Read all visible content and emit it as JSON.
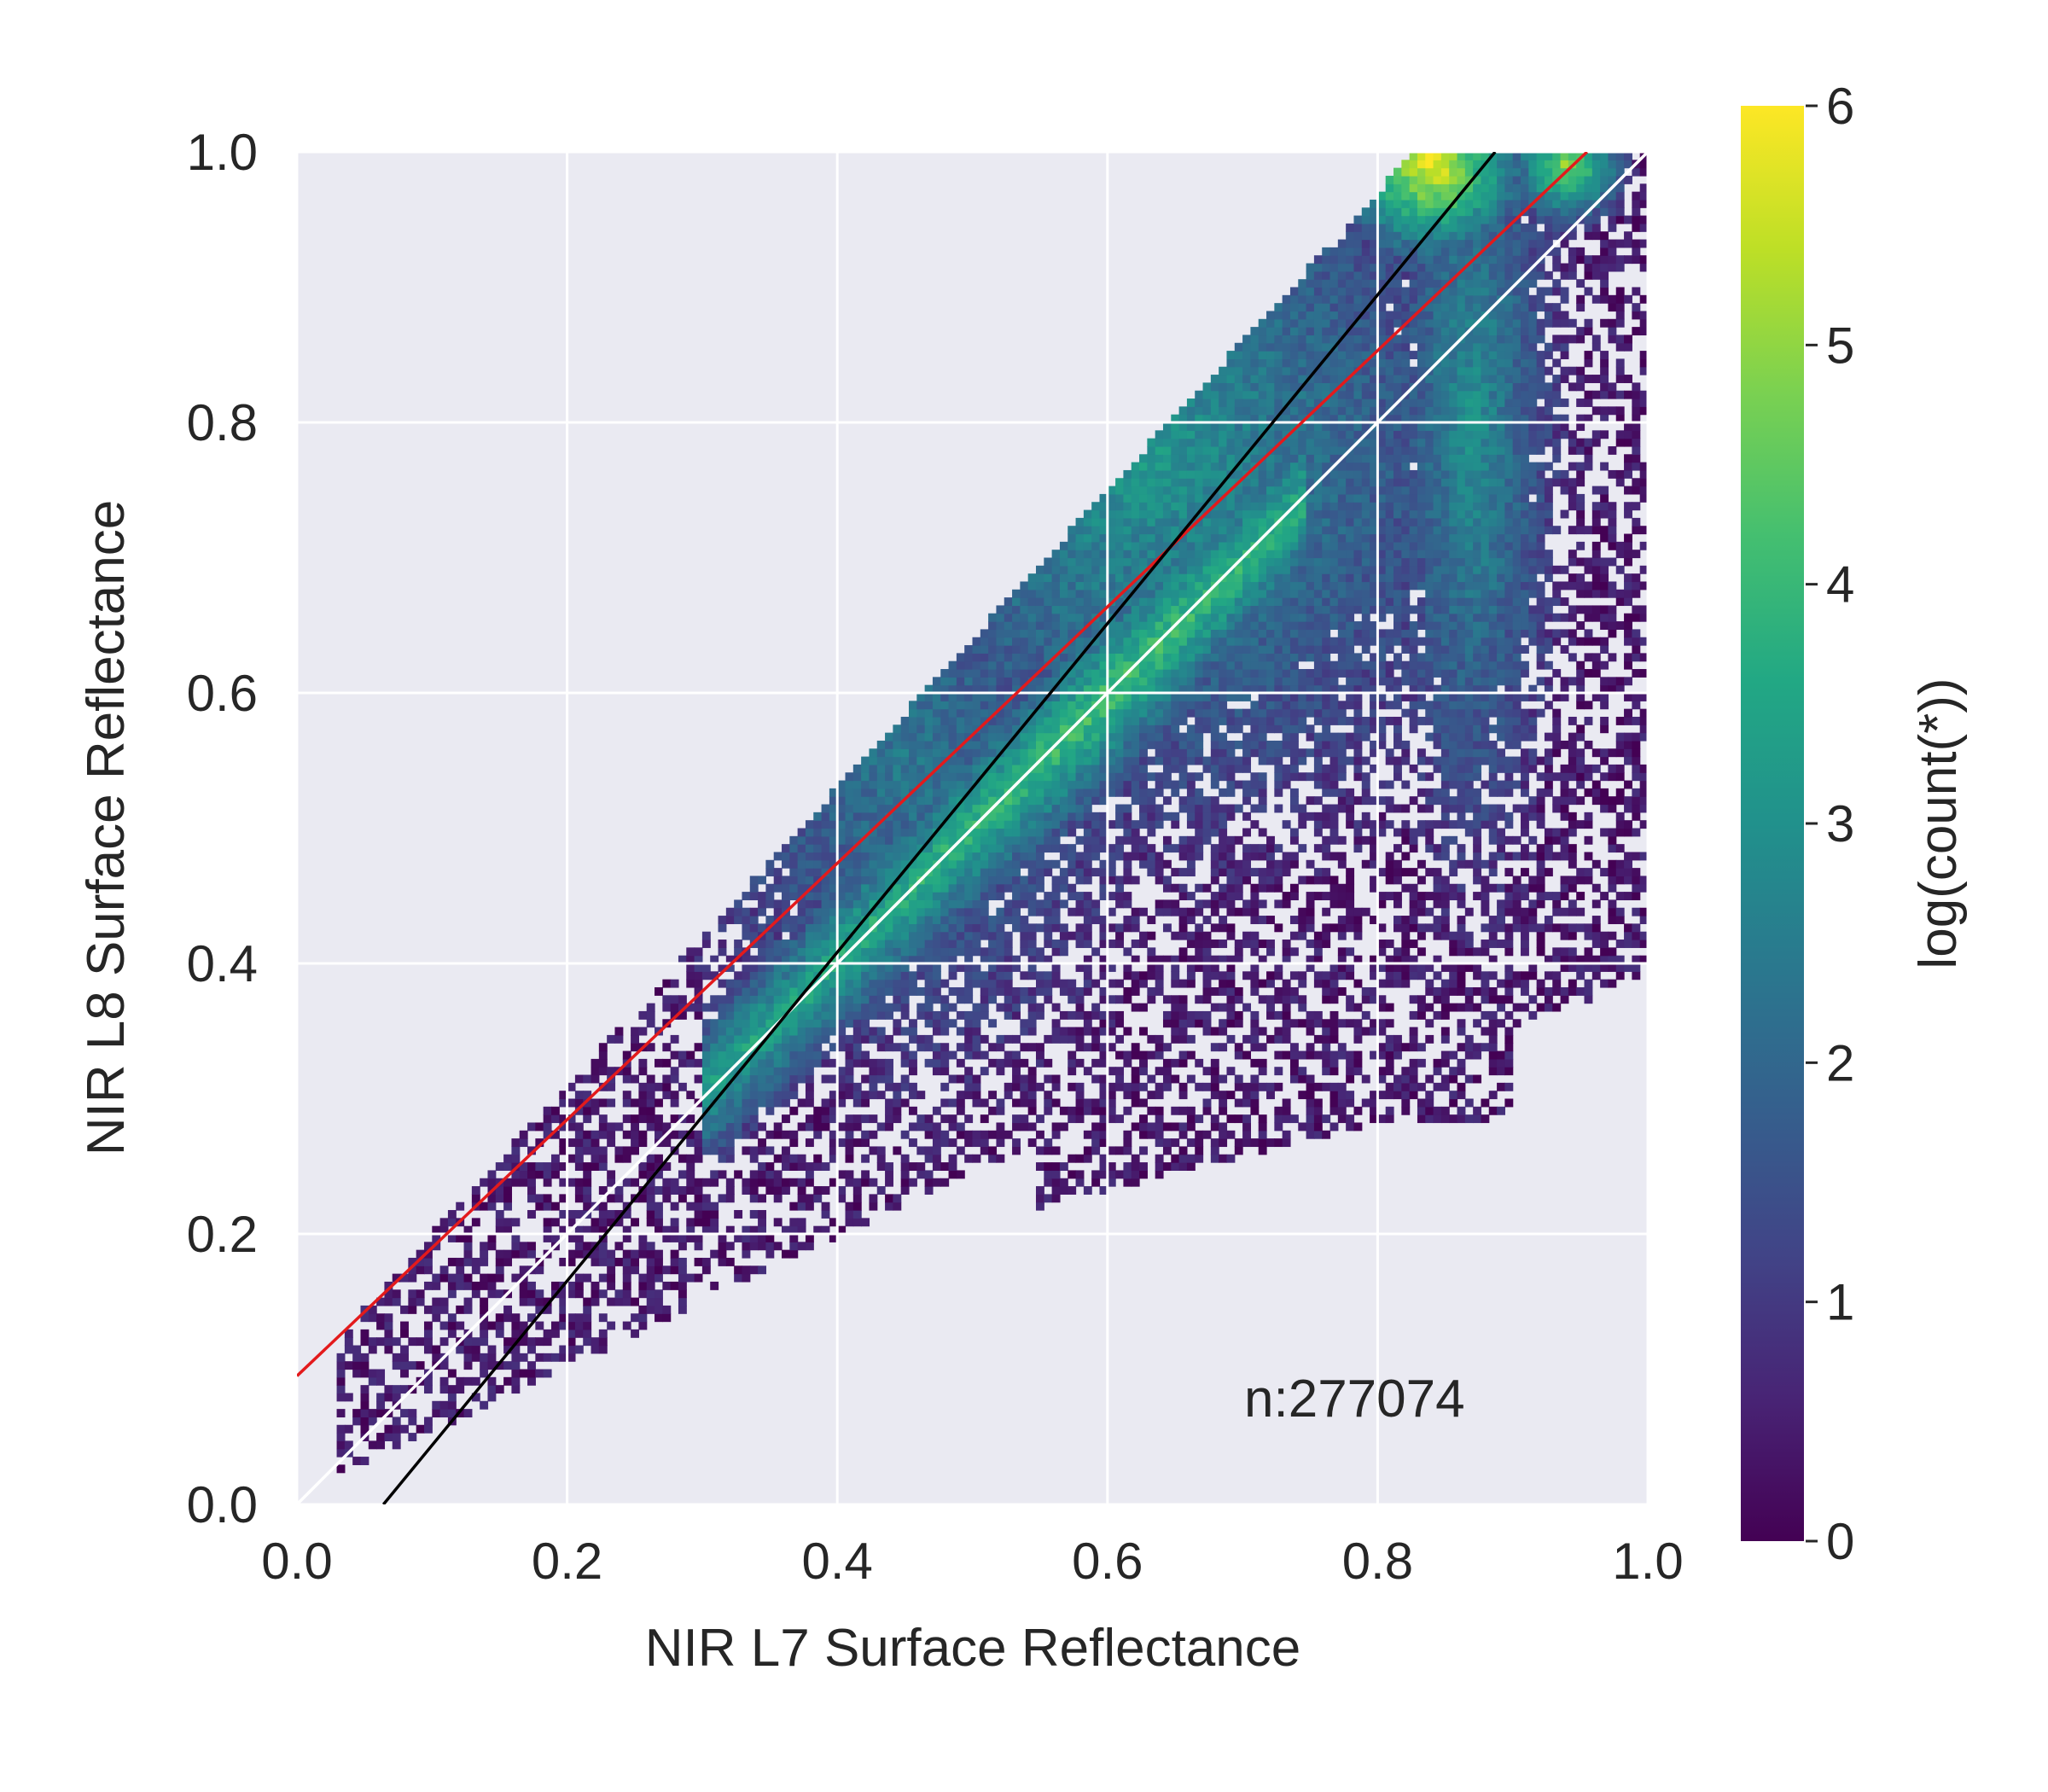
{
  "chart_data": {
    "type": "heatmap",
    "xlabel": "NIR L7 Surface Reflectance",
    "ylabel": "NIR L8 Surface Reflectance",
    "xlim": [
      0.0,
      1.0
    ],
    "ylim": [
      0.0,
      1.0
    ],
    "xticks": [
      "0.0",
      "0.2",
      "0.4",
      "0.6",
      "0.8",
      "1.0"
    ],
    "yticks": [
      "0.0",
      "0.2",
      "0.4",
      "0.6",
      "0.8",
      "1.0"
    ],
    "grid": true,
    "background_color": "#eaeaf2",
    "colorbar": {
      "label": "log(count(*))",
      "range": [
        0,
        6
      ],
      "ticks": [
        "0",
        "1",
        "2",
        "3",
        "4",
        "5",
        "6"
      ],
      "colormap": "viridis"
    },
    "annotation": "n:277074",
    "lines": [
      {
        "color": "#ffffff",
        "x": [
          0.0,
          1.0
        ],
        "y": [
          0.0,
          1.0
        ]
      },
      {
        "color": "#e31a1c",
        "x": [
          0.0,
          0.955
        ],
        "y": [
          0.095,
          1.0
        ]
      },
      {
        "color": "#000000",
        "x": [
          0.064,
          0.887
        ],
        "y": [
          0.0,
          1.0
        ]
      }
    ],
    "density_regions": [
      {
        "x": 0.6,
        "y": 0.6,
        "level": 4.6
      },
      {
        "x": 0.72,
        "y": 0.7,
        "level": 4.4
      },
      {
        "x": 0.48,
        "y": 0.45,
        "level": 4.0
      },
      {
        "x": 0.83,
        "y": 0.99,
        "level": 6.0
      },
      {
        "x": 0.93,
        "y": 0.99,
        "level": 5.2
      },
      {
        "x": 0.6,
        "y": 0.78,
        "level": 3.2
      },
      {
        "x": 0.87,
        "y": 0.75,
        "level": 3.0
      },
      {
        "x": 0.3,
        "y": 0.25,
        "level": 1.5
      },
      {
        "x": 0.87,
        "y": 0.4,
        "level": 0.8
      }
    ]
  }
}
